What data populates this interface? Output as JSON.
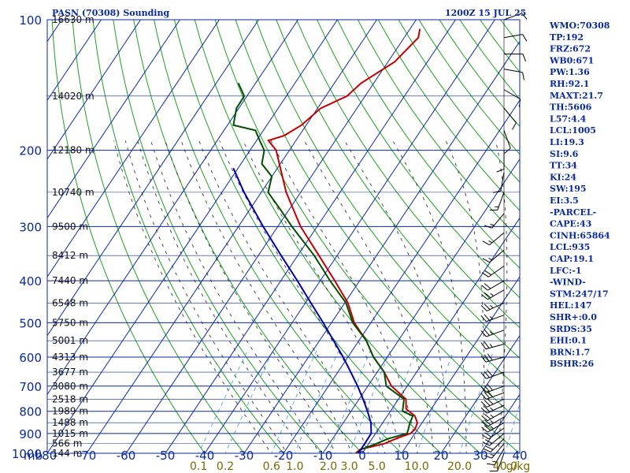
{
  "header": {
    "station": "PASN (70308) Sounding",
    "time": "1200Z 15 JUL 25"
  },
  "indices": [
    "WMO:70308",
    "TP:192",
    "FRZ:672",
    "WB0:671",
    "PW:1.36",
    "RH:92.1",
    "MAXT:21.7",
    "TH:5606",
    "L57:4.4",
    "LCL:1005",
    "LI:19.3",
    "SI:9.6",
    "TT:34",
    "KI:24",
    "SW:195",
    "EI:3.5",
    "-PARCEL-",
    "CAPE:43",
    "CINH:65864",
    "LCL:935",
    "CAP:19.1",
    "LFC:-1",
    "-WIND-",
    "STM:247/17",
    "HEL:147",
    "SHR+:0.0",
    "SRDS:35",
    "EHI:0.1",
    "BRN:1.7",
    "BSHR:26"
  ],
  "chart_data": {
    "type": "line",
    "plot": "skew-T log-P sounding",
    "pressure_axis_label": "mb",
    "pressure_ticks": [
      100,
      200,
      300,
      400,
      500,
      600,
      700,
      800,
      900,
      1000
    ],
    "pressure_range": [
      1000,
      100
    ],
    "temperature_ticks": [
      "-80",
      "-70",
      "-60",
      "-50",
      "-40",
      "-30",
      "-20",
      "-10",
      "0",
      "10",
      "20",
      "30",
      "40"
    ],
    "temperature_range": [
      -80,
      40
    ],
    "mixing_ratio_axis_label": "g/kg",
    "mixing_ratio_labels": [
      "0.1",
      "0.2",
      "0.6",
      "1.0",
      "2.0",
      "3.0",
      "5.0",
      "10.0",
      "20.0",
      "40.0"
    ],
    "heights": [
      {
        "p": 1000,
        "label": "144 m"
      },
      {
        "p": 950,
        "label": "566 m"
      },
      {
        "p": 900,
        "label": "1015 m"
      },
      {
        "p": 850,
        "label": "1488 m"
      },
      {
        "p": 800,
        "label": "1989 m"
      },
      {
        "p": 750,
        "label": "2518 m"
      },
      {
        "p": 700,
        "label": "3080 m"
      },
      {
        "p": 650,
        "label": "3677 m"
      },
      {
        "p": 600,
        "label": "4313 m"
      },
      {
        "p": 550,
        "label": "5001 m"
      },
      {
        "p": 500,
        "label": "5750 m"
      },
      {
        "p": 450,
        "label": "6548 m"
      },
      {
        "p": 400,
        "label": "7440 m"
      },
      {
        "p": 350,
        "label": "8412 m"
      },
      {
        "p": 300,
        "label": "9500 m"
      },
      {
        "p": 250,
        "label": "10740 m"
      },
      {
        "p": 200,
        "label": "12180 m"
      },
      {
        "p": 150,
        "label": "14020 m"
      },
      {
        "p": 100,
        "label": "16630 m"
      }
    ],
    "series": [
      {
        "name": "Temperature",
        "color": "#c00000",
        "points": [
          [
            1000,
            -1.7
          ],
          [
            980,
            -1.2
          ],
          [
            950,
            4.0
          ],
          [
            925,
            6.1
          ],
          [
            900,
            8.9
          ],
          [
            880,
            9.3
          ],
          [
            850,
            8.8
          ],
          [
            820,
            7.0
          ],
          [
            790,
            3.6
          ],
          [
            750,
            1.9
          ],
          [
            700,
            -4.0
          ],
          [
            650,
            -8.2
          ],
          [
            600,
            -13.5
          ],
          [
            550,
            -18.1
          ],
          [
            500,
            -24.2
          ],
          [
            450,
            -29.2
          ],
          [
            400,
            -36.3
          ],
          [
            350,
            -44.6
          ],
          [
            300,
            -54.2
          ],
          [
            250,
            -63.7
          ],
          [
            200,
            -73.4
          ],
          [
            190,
            -77.0
          ],
          [
            185,
            -73.8
          ],
          [
            175,
            -71.2
          ],
          [
            160,
            -69.2
          ],
          [
            150,
            -64.6
          ],
          [
            140,
            -63.2
          ],
          [
            125,
            -58.3
          ],
          [
            110,
            -56.4
          ],
          [
            105,
            -57.5
          ]
        ]
      },
      {
        "name": "Dewpoint",
        "color": "#005000",
        "points": [
          [
            1000,
            -1.2
          ],
          [
            980,
            -1.0
          ],
          [
            950,
            2.0
          ],
          [
            925,
            4.1
          ],
          [
            900,
            8.0
          ],
          [
            880,
            7.6
          ],
          [
            850,
            6.9
          ],
          [
            820,
            6.5
          ],
          [
            800,
            3.1
          ],
          [
            750,
            1.4
          ],
          [
            700,
            -5.3
          ],
          [
            650,
            -8.2
          ],
          [
            600,
            -13.5
          ],
          [
            550,
            -18.1
          ],
          [
            500,
            -24.6
          ],
          [
            450,
            -29.7
          ],
          [
            400,
            -37.5
          ],
          [
            350,
            -45.8
          ],
          [
            300,
            -56.4
          ],
          [
            275,
            -62.0
          ],
          [
            250,
            -68.3
          ],
          [
            230,
            -70.0
          ],
          [
            215,
            -74.7
          ],
          [
            200,
            -76.4
          ],
          [
            190,
            -79.2
          ],
          [
            180,
            -82.0
          ],
          [
            175,
            -88.5
          ],
          [
            160,
            -90.6
          ],
          [
            150,
            -90.7
          ],
          [
            140,
            -94.4
          ]
        ]
      },
      {
        "name": "Parcel",
        "color": "#0000a0",
        "points": [
          [
            1000,
            -1.0
          ],
          [
            950,
            -1.0
          ],
          [
            900,
            -1.1
          ],
          [
            850,
            -3.0
          ],
          [
            800,
            -5.8
          ],
          [
            750,
            -9.0
          ],
          [
            700,
            -12.6
          ],
          [
            650,
            -16.7
          ],
          [
            600,
            -21.2
          ],
          [
            550,
            -26.4
          ],
          [
            500,
            -32.1
          ],
          [
            450,
            -38.6
          ],
          [
            400,
            -45.8
          ],
          [
            350,
            -54.2
          ],
          [
            300,
            -63.7
          ],
          [
            250,
            -74.4
          ],
          [
            220,
            -81.2
          ]
        ]
      }
    ],
    "wind_barbs": [
      {
        "p": 1000,
        "dir": 200,
        "spd": 10
      },
      {
        "p": 975,
        "dir": 210,
        "spd": 15
      },
      {
        "p": 950,
        "dir": 220,
        "spd": 15
      },
      {
        "p": 925,
        "dir": 225,
        "spd": 20
      },
      {
        "p": 900,
        "dir": 230,
        "spd": 20
      },
      {
        "p": 875,
        "dir": 235,
        "spd": 20
      },
      {
        "p": 850,
        "dir": 240,
        "spd": 25
      },
      {
        "p": 825,
        "dir": 240,
        "spd": 25
      },
      {
        "p": 800,
        "dir": 240,
        "spd": 25
      },
      {
        "p": 775,
        "dir": 245,
        "spd": 25
      },
      {
        "p": 750,
        "dir": 245,
        "spd": 30
      },
      {
        "p": 725,
        "dir": 250,
        "spd": 30
      },
      {
        "p": 700,
        "dir": 250,
        "spd": 30
      },
      {
        "p": 650,
        "dir": 250,
        "spd": 30
      },
      {
        "p": 600,
        "dir": 255,
        "spd": 30
      },
      {
        "p": 560,
        "dir": 255,
        "spd": 25
      },
      {
        "p": 520,
        "dir": 250,
        "spd": 25
      },
      {
        "p": 480,
        "dir": 250,
        "spd": 25
      },
      {
        "p": 450,
        "dir": 245,
        "spd": 25
      },
      {
        "p": 420,
        "dir": 240,
        "spd": 25
      },
      {
        "p": 400,
        "dir": 240,
        "spd": 20
      },
      {
        "p": 370,
        "dir": 235,
        "spd": 20
      },
      {
        "p": 340,
        "dir": 230,
        "spd": 15
      },
      {
        "p": 310,
        "dir": 230,
        "spd": 15
      },
      {
        "p": 280,
        "dir": 220,
        "spd": 15
      },
      {
        "p": 250,
        "dir": 200,
        "spd": 15
      },
      {
        "p": 225,
        "dir": 190,
        "spd": 10
      },
      {
        "p": 200,
        "dir": 180,
        "spd": 10
      },
      {
        "p": 180,
        "dir": 160,
        "spd": 10
      },
      {
        "p": 160,
        "dir": 140,
        "spd": 10
      },
      {
        "p": 145,
        "dir": 120,
        "spd": 10
      },
      {
        "p": 130,
        "dir": 100,
        "spd": 10
      },
      {
        "p": 120,
        "dir": 90,
        "spd": 10
      },
      {
        "p": 110,
        "dir": 80,
        "spd": 10
      },
      {
        "p": 100,
        "dir": 70,
        "spd": 10
      }
    ]
  }
}
